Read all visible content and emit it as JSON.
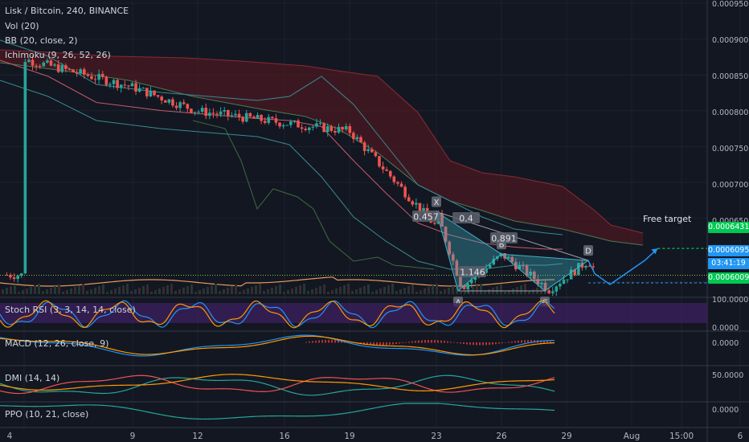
{
  "header": {
    "title": "Lisk / Bitcoin, 240, BINANCE",
    "indicators": [
      "Vol (20)",
      "BB (20, close, 2)",
      "Ichimoku (9, 26, 52, 26)"
    ]
  },
  "panes": {
    "stoch_rsi": "Stoch RSI (3, 3, 14, 14, close)",
    "macd": "MACD (12, 26, close, 9)",
    "dmi": "DMI (14, 14)",
    "ppo": "PPO (10, 21, close)"
  },
  "price_axis": {
    "ticks": [
      "0.0009500",
      "0.0009000",
      "0.0008500",
      "0.0008000",
      "0.0007500",
      "0.0007000",
      "0.0006500"
    ],
    "current_price": "0.0006095",
    "countdown": "03:41:19",
    "target_price": "0.0006431",
    "lower_price": "0.0006009",
    "stoch_ticks": [
      "100.0000",
      "0.0000"
    ],
    "macd_ticks": [
      "0.0000"
    ],
    "dmi_ticks": [
      "50.0000"
    ],
    "ppo_ticks": [
      "0.0000"
    ]
  },
  "time_axis": [
    "4",
    "9",
    "12",
    "16",
    "19",
    "23",
    "26",
    "29",
    "Aug",
    "15:00",
    "6"
  ],
  "pattern": {
    "points": [
      "X",
      "A",
      "B",
      "C",
      "D"
    ],
    "ratios": [
      "0.457",
      "0.4",
      "0.891",
      "1.146"
    ],
    "target_label": "Free target"
  },
  "colors": {
    "background": "#131722",
    "up": "#26a69a",
    "down": "#ef5350",
    "target_green": "#00c853",
    "price_blue": "#2196f3",
    "cloud_red": "#7b1d25",
    "harmonic": "#3fb1c6"
  },
  "chart_data": {
    "type": "line",
    "title": "Lisk / Bitcoin, 240, BINANCE",
    "xlabel": "",
    "ylabel": "",
    "x": [
      "4",
      "9",
      "12",
      "16",
      "19",
      "23",
      "26",
      "29"
    ],
    "series": [
      {
        "values": [
          0.00088,
          0.000845,
          0.000815,
          0.0008,
          0.00079,
          0.00067,
          0.000625,
          0.00061
        ]
      }
    ],
    "harmonic_points": [
      {
        "label": "X",
        "x": "23",
        "y": 0.000689
      },
      {
        "label": "A",
        "x": "24",
        "y": 0.00059
      },
      {
        "label": "B",
        "x": "26",
        "y": 0.000636
      },
      {
        "label": "C",
        "x": "28",
        "y": 0.00059
      },
      {
        "label": "D",
        "x": "30",
        "y": 0.000628
      }
    ],
    "ylim": [
      0.0006,
      0.00095
    ],
    "grid": true
  }
}
